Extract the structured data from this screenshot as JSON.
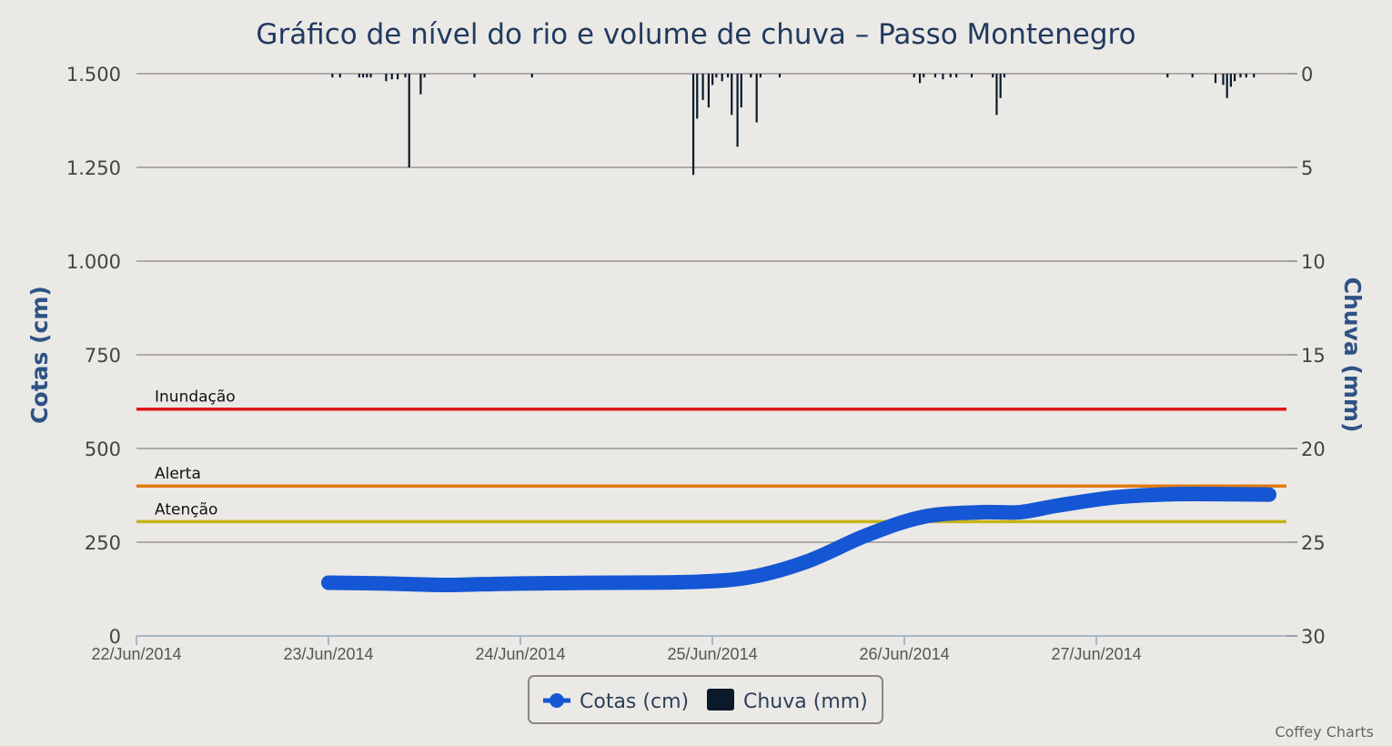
{
  "chart_data": {
    "type": "line",
    "title": "Gráfico de nível do rio e volume de chuva – Passo Montenegro",
    "y_left": {
      "label": "Cotas (cm)",
      "range": [
        0,
        1500
      ],
      "ticks": [
        0,
        250,
        500,
        750,
        1000,
        1250,
        1500
      ],
      "tick_labels": [
        "0",
        "250",
        "500",
        "750",
        "1.000",
        "1.250",
        "1.500"
      ]
    },
    "y_right": {
      "label": "Chuva (mm)",
      "range": [
        0,
        30
      ],
      "reversed": true,
      "ticks": [
        0,
        5,
        10,
        15,
        20,
        25,
        30
      ],
      "tick_labels": [
        "0",
        "5",
        "10",
        "15",
        "20",
        "25",
        "30"
      ]
    },
    "x_axis": {
      "type": "datetime",
      "ticks": [
        "22/Jun/2014",
        "23/Jun/2014",
        "24/Jun/2014",
        "25/Jun/2014",
        "26/Jun/2014",
        "27/Jun/2014"
      ],
      "range_days": [
        0,
        5.99
      ]
    },
    "plot_lines": [
      {
        "label": "Inundação",
        "value": 605,
        "color": "#e0161b"
      },
      {
        "label": "Alerta",
        "value": 400,
        "color": "#e07a0e"
      },
      {
        "label": "Atenção",
        "value": 305,
        "color": "#c9b41a"
      }
    ],
    "series": [
      {
        "name": "Cotas (cm)",
        "axis": "left",
        "color": "#1456d4",
        "points": [
          [
            1.0,
            142
          ],
          [
            1.3,
            140
          ],
          [
            1.6,
            136
          ],
          [
            2.0,
            140
          ],
          [
            2.5,
            142
          ],
          [
            2.9,
            144
          ],
          [
            3.2,
            157
          ],
          [
            3.5,
            200
          ],
          [
            3.8,
            268
          ],
          [
            4.1,
            318
          ],
          [
            4.4,
            330
          ],
          [
            4.6,
            330
          ],
          [
            4.8,
            348
          ],
          [
            5.1,
            370
          ],
          [
            5.4,
            378
          ],
          [
            5.7,
            378
          ],
          [
            5.9,
            377
          ]
        ]
      },
      {
        "name": "Chuva (mm)",
        "axis": "right",
        "color": "#0a1a2a",
        "type": "column",
        "points": [
          [
            1.02,
            0.2
          ],
          [
            1.06,
            0.2
          ],
          [
            1.16,
            0.2
          ],
          [
            1.18,
            0.2
          ],
          [
            1.2,
            0.2
          ],
          [
            1.22,
            0.2
          ],
          [
            1.3,
            0.4
          ],
          [
            1.33,
            0.3
          ],
          [
            1.36,
            0.3
          ],
          [
            1.4,
            0.2
          ],
          [
            1.42,
            5.0
          ],
          [
            1.48,
            1.1
          ],
          [
            1.5,
            0.2
          ],
          [
            1.76,
            0.2
          ],
          [
            2.06,
            0.2
          ],
          [
            2.9,
            5.4
          ],
          [
            2.92,
            2.4
          ],
          [
            2.95,
            1.4
          ],
          [
            2.98,
            1.8
          ],
          [
            3.0,
            0.6
          ],
          [
            3.02,
            0.2
          ],
          [
            3.05,
            0.4
          ],
          [
            3.08,
            0.2
          ],
          [
            3.1,
            2.2
          ],
          [
            3.13,
            3.9
          ],
          [
            3.15,
            1.8
          ],
          [
            3.2,
            0.2
          ],
          [
            3.23,
            2.6
          ],
          [
            3.25,
            0.2
          ],
          [
            3.35,
            0.2
          ],
          [
            4.05,
            0.2
          ],
          [
            4.08,
            0.5
          ],
          [
            4.1,
            0.2
          ],
          [
            4.16,
            0.2
          ],
          [
            4.2,
            0.3
          ],
          [
            4.24,
            0.2
          ],
          [
            4.27,
            0.2
          ],
          [
            4.35,
            0.2
          ],
          [
            4.46,
            0.2
          ],
          [
            4.48,
            2.2
          ],
          [
            4.5,
            1.3
          ],
          [
            4.52,
            0.2
          ],
          [
            5.37,
            0.2
          ],
          [
            5.5,
            0.2
          ],
          [
            5.62,
            0.5
          ],
          [
            5.66,
            0.6
          ],
          [
            5.68,
            1.3
          ],
          [
            5.7,
            0.7
          ],
          [
            5.72,
            0.4
          ],
          [
            5.75,
            0.2
          ],
          [
            5.78,
            0.2
          ],
          [
            5.82,
            0.2
          ]
        ]
      }
    ],
    "legend": {
      "position": "bottom-center",
      "items": [
        "Cotas (cm)",
        "Chuva (mm)"
      ]
    },
    "credits": "Coffey Charts"
  }
}
